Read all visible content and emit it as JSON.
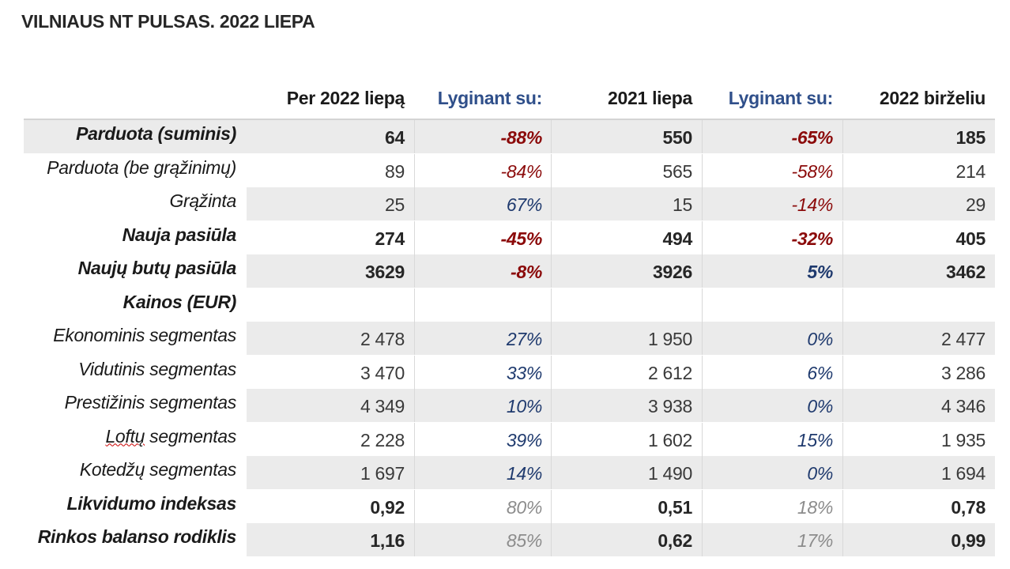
{
  "title": "VILNIAUS NT PULSAS. 2022 LIEPA",
  "headers": [
    "Per 2022 liepą",
    "Lyginant su:",
    "2021 liepa",
    "Lyginant su:",
    "2022 birželiu"
  ],
  "colors": {
    "red": "#8b0a0a",
    "blue": "#1f3a6e",
    "grey": "#8c8c8c",
    "header_blue": "#2f4f8a"
  },
  "rows": [
    {
      "label": "Parduota (suminis)",
      "v1": "64",
      "p1": "-88%",
      "v2": "550",
      "p2": "-65%",
      "v3": "185"
    },
    {
      "label": "Parduota (be grąžinimų)",
      "v1": "89",
      "p1": "-84%",
      "v2": "565",
      "p2": "-58%",
      "v3": "214"
    },
    {
      "label": "Grąžinta",
      "v1": "25",
      "p1": "67%",
      "v2": "15",
      "p2": "-14%",
      "v3": "29"
    },
    {
      "label": "Nauja pasiūla",
      "v1": "274",
      "p1": "-45%",
      "v2": "494",
      "p2": "-32%",
      "v3": "405"
    },
    {
      "label": "Naujų butų pasiūla",
      "v1": "3629",
      "p1": "-8%",
      "v2": "3926",
      "p2": "5%",
      "v3": "3462"
    },
    {
      "label": "Kainos (EUR)",
      "v1": "",
      "p1": "",
      "v2": "",
      "p2": "",
      "v3": ""
    },
    {
      "label": "Ekonominis segmentas",
      "v1": "2 478",
      "p1": "27%",
      "v2": "1 950",
      "p2": "0%",
      "v3": "2 477"
    },
    {
      "label": "Vidutinis segmentas",
      "v1": "3 470",
      "p1": "33%",
      "v2": "2 612",
      "p2": "6%",
      "v3": "3 286"
    },
    {
      "label": "Prestižinis segmentas",
      "v1": "4 349",
      "p1": "10%",
      "v2": "3 938",
      "p2": "0%",
      "v3": "4 346"
    },
    {
      "label_word": "Loftų",
      "label_rest": " segmentas",
      "v1": "2 228",
      "p1": "39%",
      "v2": "1 602",
      "p2": "15%",
      "v3": "1 935"
    },
    {
      "label": "Kotedžų segmentas",
      "v1": "1 697",
      "p1": "14%",
      "v2": "1 490",
      "p2": "0%",
      "v3": "1 694"
    },
    {
      "label": "Likvidumo indeksas",
      "v1": "0,92",
      "p1": "80%",
      "v2": "0,51",
      "p2": "18%",
      "v3": "0,78"
    },
    {
      "label": "Rinkos balanso rodiklis",
      "v1": "1,16",
      "p1": "85%",
      "v2": "0,62",
      "p2": "17%",
      "v3": "0,99"
    }
  ]
}
